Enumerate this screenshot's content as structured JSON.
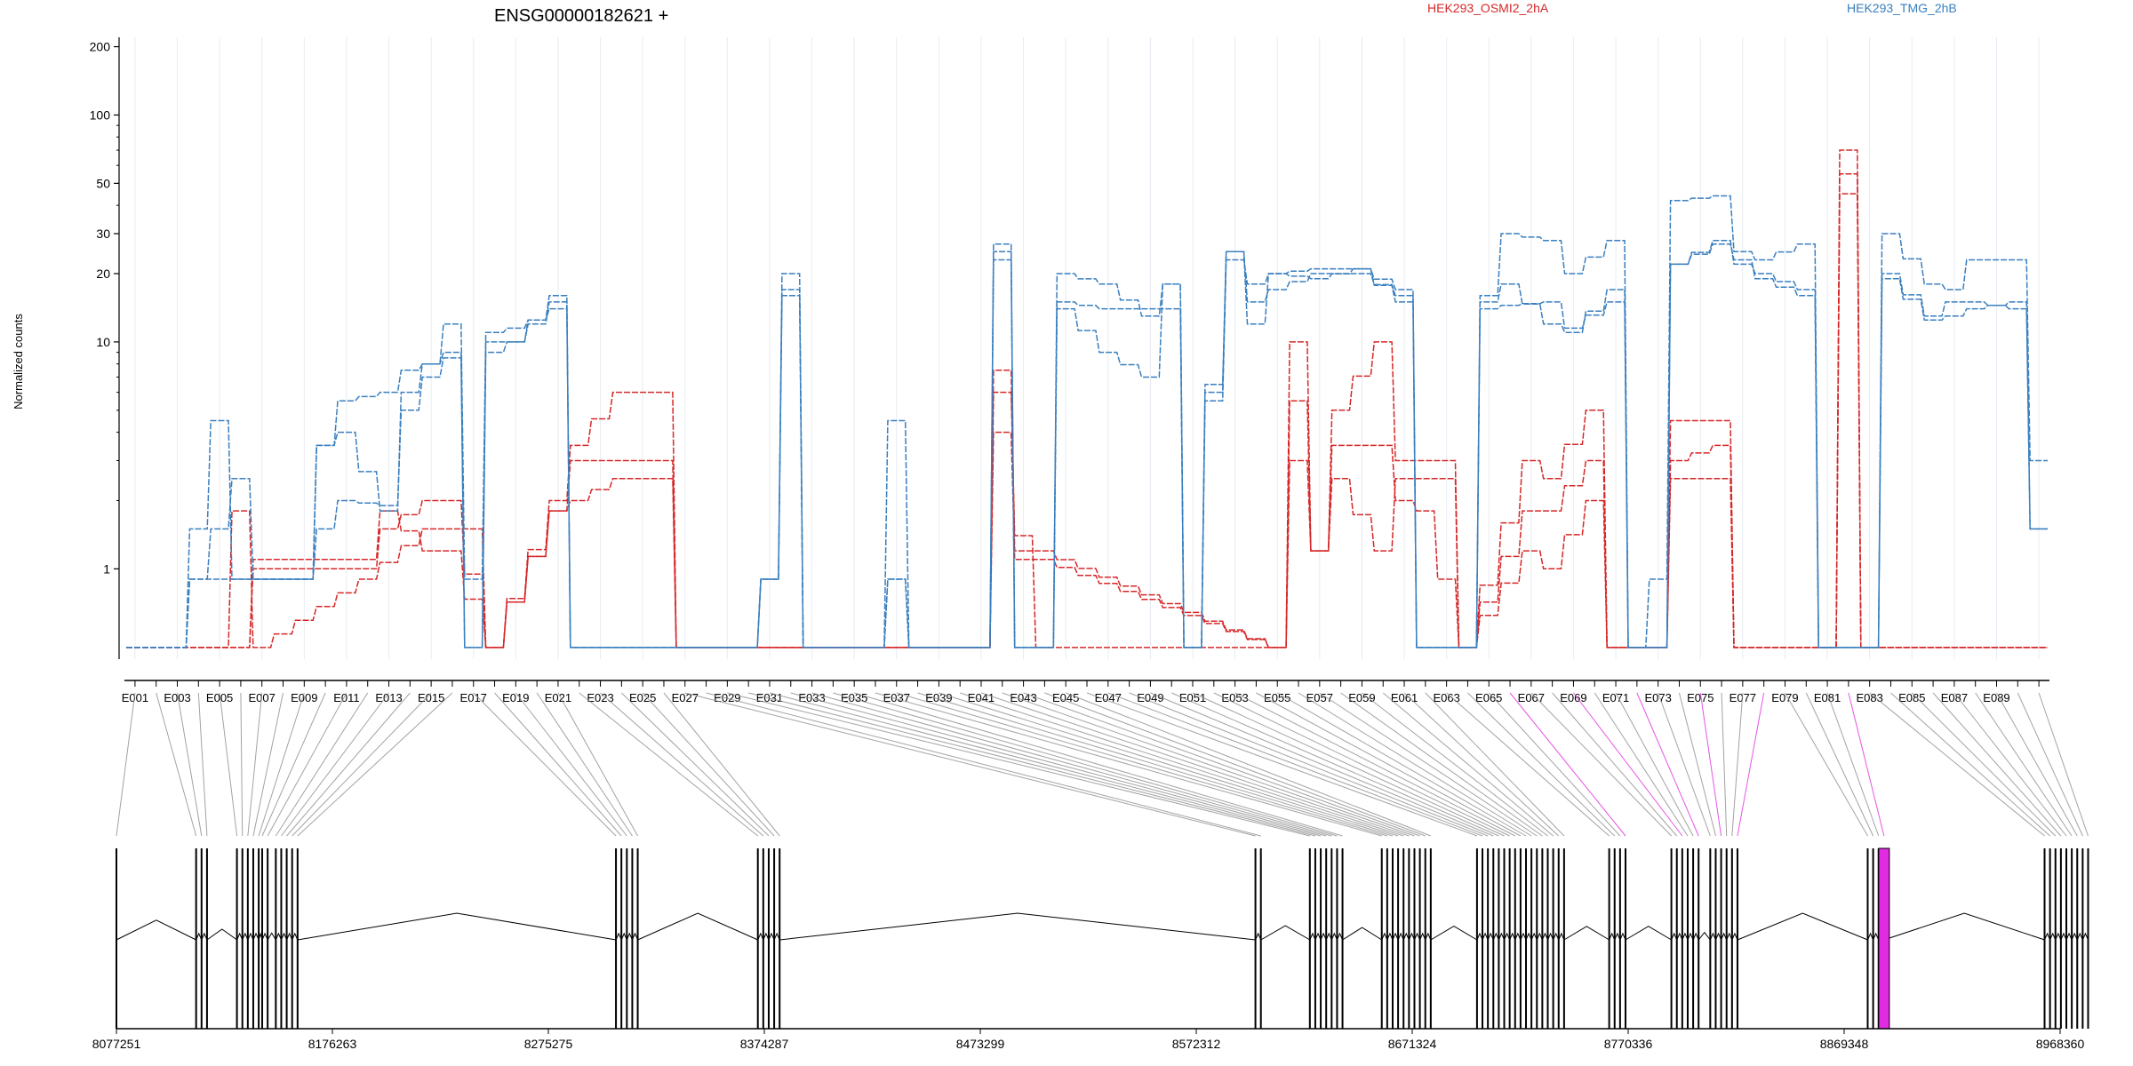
{
  "title": "ENSG00000182621 +",
  "colors": {
    "red": "#d62728",
    "blue": "#3a7fbf",
    "highlight": "#e02be0",
    "gene": "#000000",
    "connector": "#8c8c8c"
  },
  "chart_data": {
    "type": "line",
    "title": "ENSG00000182621 +",
    "ylabel": "Normalized counts",
    "yscale": "log",
    "ylim": [
      0.4,
      220
    ],
    "yticks": [
      "200",
      "100",
      "50",
      "30",
      "20",
      "10",
      "1"
    ],
    "grid": "vertical",
    "legend_position": "top-right",
    "exon_labels": [
      "E001",
      "E003",
      "E005",
      "E007",
      "E009",
      "E011",
      "E013",
      "E015",
      "E017",
      "E019",
      "E021",
      "E023",
      "E025",
      "E027",
      "E029",
      "E031",
      "E033",
      "E035",
      "E037",
      "E039",
      "E041",
      "E043",
      "E045",
      "E047",
      "E049",
      "E051",
      "E053",
      "E055",
      "E057",
      "E059",
      "E061",
      "E063",
      "E065",
      "E067",
      "E069",
      "E071",
      "E073",
      "E075",
      "E077",
      "E079",
      "E081",
      "E083",
      "E085",
      "E087",
      "E089"
    ],
    "exon_count": 91,
    "highlighted_exon": 82,
    "genomic_ticks": [
      "8077251",
      "8176263",
      "8275275",
      "8374287",
      "8473299",
      "8572312",
      "8671324",
      "8770336",
      "8869348",
      "8968360"
    ],
    "series": [
      {
        "name": "HEK293_OSMI2_2hA",
        "color": "red",
        "segments": [
          [
            1,
            0.45
          ],
          [
            5,
            0.45
          ],
          [
            6,
            1.8
          ],
          [
            7,
            0.45
          ],
          [
            12,
            0.9
          ],
          [
            15,
            1.5
          ],
          [
            17,
            1.5
          ],
          [
            18,
            0.45
          ],
          [
            21,
            2.0
          ],
          [
            22,
            3.5
          ],
          [
            24,
            6.0
          ],
          [
            26,
            6.0
          ],
          [
            27,
            0.45
          ],
          [
            41,
            0.45
          ],
          [
            42,
            6.0
          ],
          [
            43,
            1.4
          ],
          [
            44,
            0.45
          ],
          [
            55,
            0.45
          ],
          [
            56,
            10.0
          ],
          [
            57,
            1.2
          ],
          [
            58,
            5.0
          ],
          [
            60,
            10.0
          ],
          [
            61,
            3.0
          ],
          [
            63,
            3.0
          ],
          [
            64,
            0.45
          ],
          [
            67,
            3.0
          ],
          [
            68,
            2.5
          ],
          [
            70,
            5.0
          ],
          [
            71,
            0.45
          ],
          [
            73,
            0.45
          ],
          [
            74,
            4.5
          ],
          [
            76,
            4.5
          ],
          [
            77,
            0.45
          ],
          [
            81,
            0.45
          ],
          [
            82,
            45.0
          ],
          [
            83,
            0.45
          ],
          [
            91,
            0.45
          ]
        ]
      },
      {
        "name": "HEK293_OSMI2_2hA",
        "color": "red",
        "segments": [
          [
            1,
            0.45
          ],
          [
            6,
            0.45
          ],
          [
            7,
            1.0
          ],
          [
            12,
            1.0
          ],
          [
            13,
            1.5
          ],
          [
            15,
            2.0
          ],
          [
            16,
            2.0
          ],
          [
            18,
            0.45
          ],
          [
            21,
            1.8
          ],
          [
            22,
            3.0
          ],
          [
            24,
            3.0
          ],
          [
            26,
            3.0
          ],
          [
            27,
            0.45
          ],
          [
            41,
            0.45
          ],
          [
            42,
            4.0
          ],
          [
            43,
            1.1
          ],
          [
            44,
            1.1
          ],
          [
            55,
            0.45
          ],
          [
            56,
            5.5
          ],
          [
            57,
            1.2
          ],
          [
            58,
            3.5
          ],
          [
            60,
            3.5
          ],
          [
            61,
            2.0
          ],
          [
            62,
            1.8
          ],
          [
            64,
            0.45
          ],
          [
            67,
            1.8
          ],
          [
            68,
            1.8
          ],
          [
            70,
            3.0
          ],
          [
            71,
            0.45
          ],
          [
            73,
            0.45
          ],
          [
            74,
            3.0
          ],
          [
            76,
            3.5
          ],
          [
            77,
            0.45
          ],
          [
            81,
            0.45
          ],
          [
            82,
            55.0
          ],
          [
            83,
            0.45
          ],
          [
            91,
            0.45
          ]
        ]
      },
      {
        "name": "HEK293_OSMI2_2hA",
        "color": "red",
        "segments": [
          [
            1,
            0.45
          ],
          [
            6,
            0.45
          ],
          [
            7,
            1.1
          ],
          [
            12,
            1.1
          ],
          [
            13,
            1.8
          ],
          [
            15,
            1.2
          ],
          [
            16,
            1.2
          ],
          [
            18,
            0.45
          ],
          [
            21,
            1.8
          ],
          [
            22,
            2.0
          ],
          [
            24,
            2.5
          ],
          [
            26,
            2.5
          ],
          [
            27,
            0.45
          ],
          [
            41,
            0.45
          ],
          [
            42,
            7.5
          ],
          [
            43,
            1.2
          ],
          [
            44,
            1.2
          ],
          [
            55,
            0.45
          ],
          [
            56,
            3.0
          ],
          [
            57,
            1.2
          ],
          [
            58,
            2.5
          ],
          [
            60,
            1.2
          ],
          [
            61,
            2.5
          ],
          [
            63,
            2.5
          ],
          [
            64,
            0.45
          ],
          [
            67,
            1.2
          ],
          [
            68,
            1.0
          ],
          [
            70,
            2.0
          ],
          [
            71,
            0.45
          ],
          [
            73,
            0.45
          ],
          [
            74,
            2.5
          ],
          [
            76,
            2.5
          ],
          [
            77,
            0.45
          ],
          [
            81,
            0.45
          ],
          [
            82,
            70.0
          ],
          [
            83,
            0.45
          ],
          [
            91,
            0.45
          ]
        ]
      },
      {
        "name": "HEK293_TMG_2hB",
        "color": "blue",
        "segments": [
          [
            1,
            0.45
          ],
          [
            3,
            0.45
          ],
          [
            4,
            1.5
          ],
          [
            5,
            4.5
          ],
          [
            6,
            0.9
          ],
          [
            9,
            0.9
          ],
          [
            10,
            3.5
          ],
          [
            11,
            5.5
          ],
          [
            13,
            6.0
          ],
          [
            14,
            7.5
          ],
          [
            15,
            8.0
          ],
          [
            16,
            12.0
          ],
          [
            17,
            0.9
          ],
          [
            18,
            11.0
          ],
          [
            19,
            11.5
          ],
          [
            20,
            12.5
          ],
          [
            21,
            16.0
          ],
          [
            22,
            0.45
          ],
          [
            30,
            0.45
          ],
          [
            31,
            0.9
          ],
          [
            32,
            20.0
          ],
          [
            33,
            0.45
          ],
          [
            36,
            0.45
          ],
          [
            37,
            4.5
          ],
          [
            38,
            0.45
          ],
          [
            41,
            0.45
          ],
          [
            42,
            27.0
          ],
          [
            43,
            0.45
          ],
          [
            44,
            0.45
          ],
          [
            45,
            20.0
          ],
          [
            47,
            18.0
          ],
          [
            49,
            13.0
          ],
          [
            50,
            18.0
          ],
          [
            51,
            0.45
          ],
          [
            52,
            6.0
          ],
          [
            53,
            25.0
          ],
          [
            54,
            12.0
          ],
          [
            55,
            20.0
          ],
          [
            57,
            21.0
          ],
          [
            59,
            21.0
          ],
          [
            61,
            15.0
          ],
          [
            62,
            0.45
          ],
          [
            64,
            0.45
          ],
          [
            65,
            16.0
          ],
          [
            66,
            30.0
          ],
          [
            68,
            28.0
          ],
          [
            69,
            20.0
          ],
          [
            71,
            28.0
          ],
          [
            72,
            0.45
          ],
          [
            73,
            0.9
          ],
          [
            74,
            42.0
          ],
          [
            76,
            44.0
          ],
          [
            77,
            25.0
          ],
          [
            78,
            23.0
          ],
          [
            80,
            27.0
          ],
          [
            81,
            0.45
          ],
          [
            83,
            0.45
          ],
          [
            84,
            30.0
          ],
          [
            86,
            18.0
          ],
          [
            87,
            17.0
          ],
          [
            88,
            23.0
          ],
          [
            90,
            23.0
          ],
          [
            91,
            3.0
          ]
        ]
      },
      {
        "name": "HEK293_TMG_2hB",
        "color": "blue",
        "segments": [
          [
            1,
            0.45
          ],
          [
            3,
            0.45
          ],
          [
            4,
            0.9
          ],
          [
            6,
            2.5
          ],
          [
            7,
            0.9
          ],
          [
            9,
            0.9
          ],
          [
            10,
            3.5
          ],
          [
            11,
            4.0
          ],
          [
            13,
            1.8
          ],
          [
            14,
            6.0
          ],
          [
            15,
            8.0
          ],
          [
            16,
            9.0
          ],
          [
            17,
            0.45
          ],
          [
            18,
            10.0
          ],
          [
            19,
            10.0
          ],
          [
            20,
            12.0
          ],
          [
            21,
            15.0
          ],
          [
            22,
            0.45
          ],
          [
            30,
            0.45
          ],
          [
            31,
            0.9
          ],
          [
            32,
            17.0
          ],
          [
            33,
            0.45
          ],
          [
            36,
            0.45
          ],
          [
            37,
            0.9
          ],
          [
            38,
            0.45
          ],
          [
            41,
            0.45
          ],
          [
            42,
            25.0
          ],
          [
            43,
            0.45
          ],
          [
            44,
            0.45
          ],
          [
            45,
            15.0
          ],
          [
            47,
            14.0
          ],
          [
            49,
            14.0
          ],
          [
            50,
            14.0
          ],
          [
            51,
            0.45
          ],
          [
            52,
            6.5
          ],
          [
            53,
            25.0
          ],
          [
            54,
            15.0
          ],
          [
            55,
            17.0
          ],
          [
            57,
            20.0
          ],
          [
            59,
            20.0
          ],
          [
            61,
            16.0
          ],
          [
            62,
            0.45
          ],
          [
            64,
            0.45
          ],
          [
            65,
            15.0
          ],
          [
            66,
            18.0
          ],
          [
            68,
            12.0
          ],
          [
            69,
            11.0
          ],
          [
            71,
            17.0
          ],
          [
            72,
            0.45
          ],
          [
            73,
            0.45
          ],
          [
            74,
            22.0
          ],
          [
            76,
            28.0
          ],
          [
            77,
            22.0
          ],
          [
            78,
            20.0
          ],
          [
            80,
            17.0
          ],
          [
            81,
            0.45
          ],
          [
            83,
            0.45
          ],
          [
            84,
            20.0
          ],
          [
            86,
            13.0
          ],
          [
            87,
            15.0
          ],
          [
            88,
            15.0
          ],
          [
            90,
            14.0
          ],
          [
            91,
            1.5
          ]
        ]
      },
      {
        "name": "HEK293_TMG_2hB",
        "color": "blue",
        "segments": [
          [
            1,
            0.45
          ],
          [
            3,
            0.45
          ],
          [
            4,
            0.9
          ],
          [
            6,
            0.9
          ],
          [
            7,
            0.9
          ],
          [
            9,
            0.9
          ],
          [
            10,
            1.5
          ],
          [
            11,
            2.0
          ],
          [
            13,
            1.9
          ],
          [
            14,
            5.0
          ],
          [
            15,
            7.0
          ],
          [
            16,
            8.5
          ],
          [
            17,
            0.45
          ],
          [
            18,
            9.0
          ],
          [
            19,
            10.0
          ],
          [
            20,
            12.5
          ],
          [
            21,
            14.0
          ],
          [
            22,
            0.45
          ],
          [
            30,
            0.45
          ],
          [
            31,
            0.9
          ],
          [
            32,
            16.0
          ],
          [
            33,
            0.45
          ],
          [
            36,
            0.45
          ],
          [
            37,
            0.9
          ],
          [
            38,
            0.45
          ],
          [
            41,
            0.45
          ],
          [
            42,
            23.0
          ],
          [
            43,
            0.45
          ],
          [
            44,
            0.45
          ],
          [
            45,
            14.0
          ],
          [
            47,
            9.0
          ],
          [
            49,
            7.0
          ],
          [
            50,
            18.0
          ],
          [
            51,
            0.45
          ],
          [
            52,
            5.5
          ],
          [
            53,
            23.0
          ],
          [
            54,
            18.0
          ],
          [
            55,
            20.0
          ],
          [
            57,
            19.0
          ],
          [
            59,
            21.0
          ],
          [
            61,
            17.0
          ],
          [
            62,
            0.45
          ],
          [
            64,
            0.45
          ],
          [
            65,
            14.0
          ],
          [
            66,
            14.5
          ],
          [
            68,
            15.0
          ],
          [
            69,
            11.5
          ],
          [
            71,
            15.0
          ],
          [
            72,
            0.45
          ],
          [
            73,
            0.45
          ],
          [
            74,
            22.0
          ],
          [
            76,
            27.0
          ],
          [
            77,
            23.0
          ],
          [
            78,
            19.0
          ],
          [
            80,
            16.0
          ],
          [
            81,
            0.45
          ],
          [
            83,
            0.45
          ],
          [
            84,
            19.0
          ],
          [
            86,
            12.5
          ],
          [
            87,
            13.0
          ],
          [
            88,
            14.0
          ],
          [
            90,
            15.0
          ],
          [
            91,
            1.5
          ]
        ]
      }
    ],
    "legend": [
      {
        "label": "HEK293_OSMI2_2hA",
        "color": "red"
      },
      {
        "label": "HEK293_TMG_2hB",
        "color": "blue"
      }
    ]
  }
}
